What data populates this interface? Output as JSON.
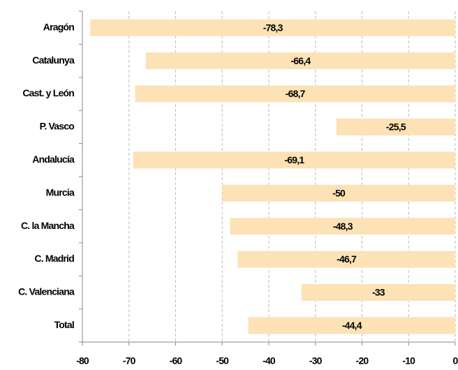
{
  "chart_data": {
    "type": "bar",
    "orientation": "horizontal",
    "categories": [
      "Aragón",
      "Catalunya",
      "Cast. y León",
      "P. Vasco",
      "Andalucía",
      "Murcia",
      "C. la Mancha",
      "C. Madrid",
      "C. Valenciana",
      "Total"
    ],
    "values": [
      -78.3,
      -66.4,
      -68.7,
      -25.5,
      -69.1,
      -50,
      -48.3,
      -46.7,
      -33,
      -44.4
    ],
    "value_labels": [
      "-78,3",
      "-66,4",
      "-68,7",
      "-25,5",
      "-69,1",
      "-50",
      "-48,3",
      "-46,7",
      "-33",
      "-44,4"
    ],
    "color": "#fde2b5",
    "xlim": [
      -80,
      0
    ],
    "xticks": [
      -80,
      -70,
      -60,
      -50,
      -40,
      -30,
      -20,
      -10,
      0
    ],
    "grid": true
  }
}
